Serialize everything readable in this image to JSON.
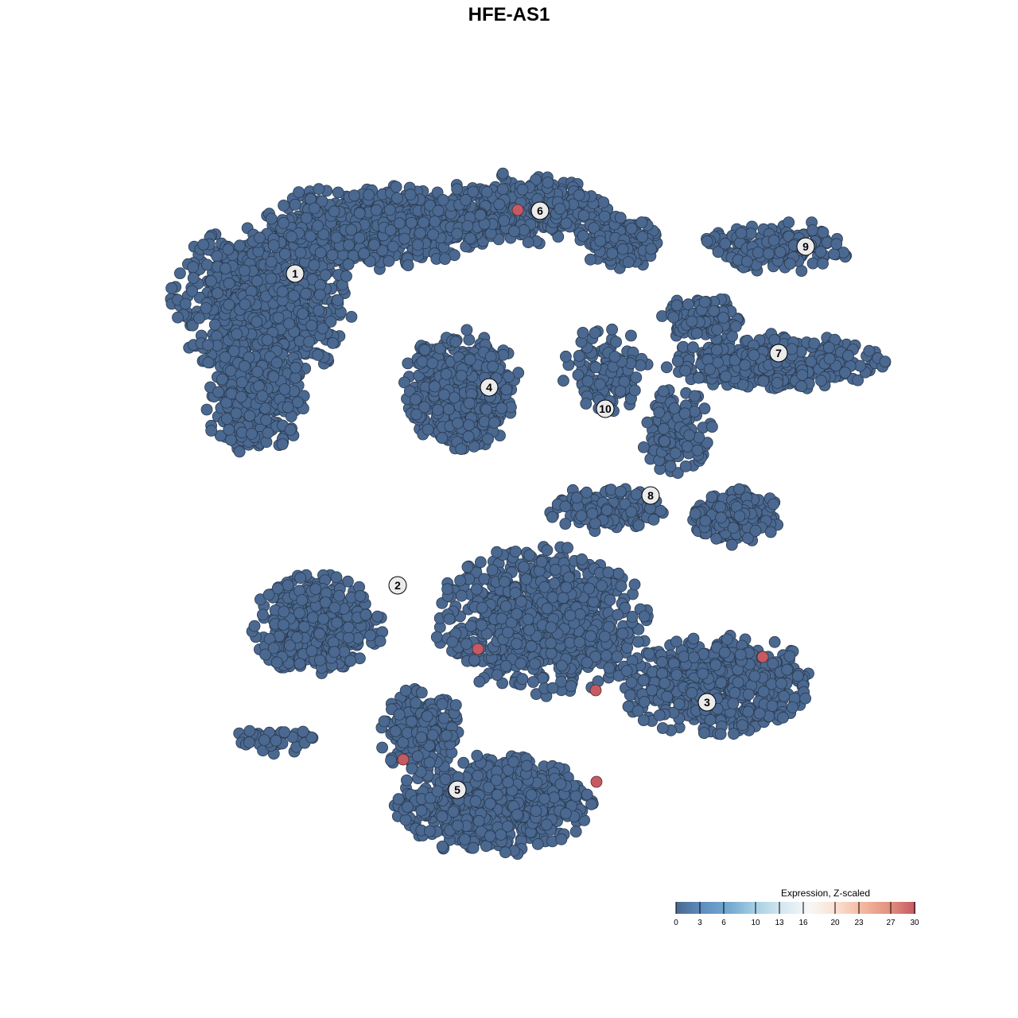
{
  "chart_data": {
    "type": "scatter",
    "title": "HFE-AS1",
    "xlabel": "",
    "ylabel": "",
    "grid": false,
    "point_color_default": "#4a6890",
    "point_color_high": "#c65a62",
    "cluster_labels": [
      "1",
      "2",
      "3",
      "4",
      "5",
      "6",
      "7",
      "8",
      "9",
      "10"
    ],
    "highlighted_cells": 6,
    "legend": {
      "title": "Expression, Z-scaled",
      "placement": "bottom-right",
      "ticks": [
        "0",
        "3",
        "6",
        "10",
        "13",
        "16",
        "20",
        "23",
        "27",
        "30"
      ],
      "range": [
        0,
        30
      ],
      "colors": [
        "#4a6890",
        "#5f8fc0",
        "#74a9d0",
        "#a7d0e4",
        "#d5e8f1",
        "#f7f7f7",
        "#fbe1d2",
        "#f3b9a0",
        "#e29180",
        "#c65a62"
      ]
    }
  }
}
